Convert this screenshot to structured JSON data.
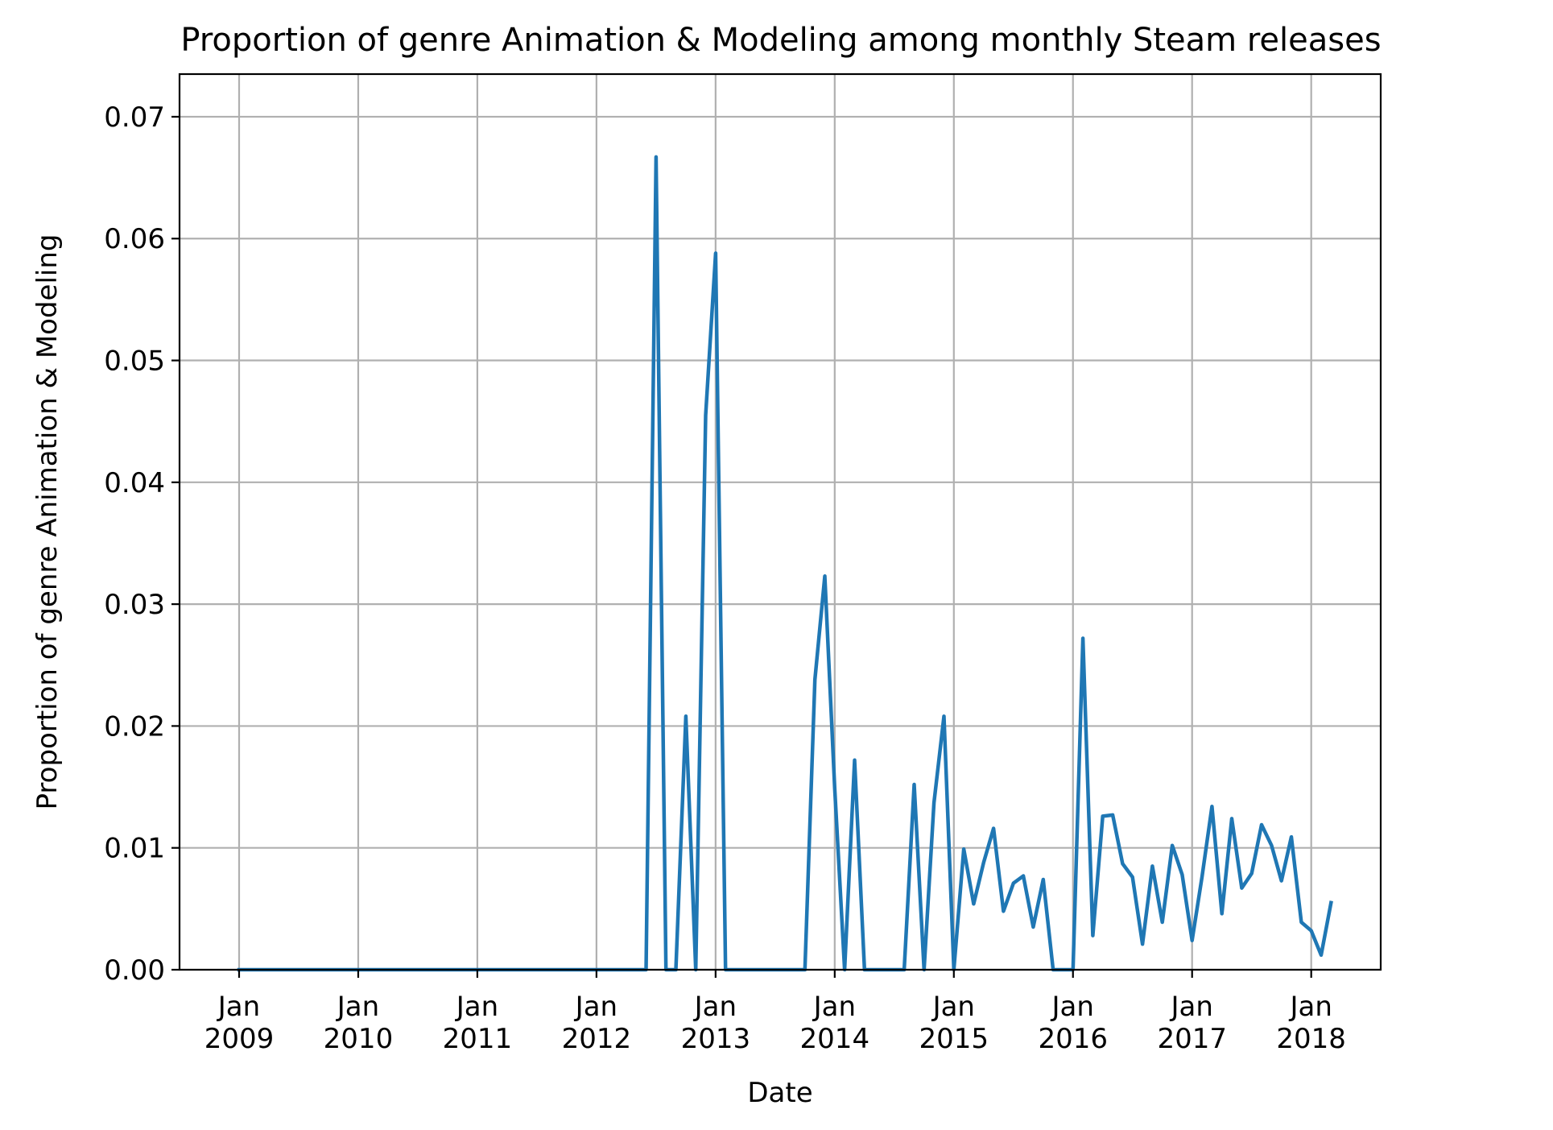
{
  "chart_data": {
    "type": "line",
    "title": "Proportion of genre Animation & Modeling among monthly Steam releases",
    "xlabel": "Date",
    "ylabel": "Proportion of genre Animation & Modeling",
    "xlim": [
      "2008-07",
      "2018-08"
    ],
    "ylim": [
      0,
      0.0735
    ],
    "grid": true,
    "x_ticks": [
      {
        "date": "2009-01",
        "label": [
          "Jan",
          "2009"
        ]
      },
      {
        "date": "2010-01",
        "label": [
          "Jan",
          "2010"
        ]
      },
      {
        "date": "2011-01",
        "label": [
          "Jan",
          "2011"
        ]
      },
      {
        "date": "2012-01",
        "label": [
          "Jan",
          "2012"
        ]
      },
      {
        "date": "2013-01",
        "label": [
          "Jan",
          "2013"
        ]
      },
      {
        "date": "2014-01",
        "label": [
          "Jan",
          "2014"
        ]
      },
      {
        "date": "2015-01",
        "label": [
          "Jan",
          "2015"
        ]
      },
      {
        "date": "2016-01",
        "label": [
          "Jan",
          "2016"
        ]
      },
      {
        "date": "2017-01",
        "label": [
          "Jan",
          "2017"
        ]
      },
      {
        "date": "2018-01",
        "label": [
          "Jan",
          "2018"
        ]
      }
    ],
    "y_ticks": [
      {
        "value": 0.0,
        "label": "0.00"
      },
      {
        "value": 0.01,
        "label": "0.01"
      },
      {
        "value": 0.02,
        "label": "0.02"
      },
      {
        "value": 0.03,
        "label": "0.03"
      },
      {
        "value": 0.04,
        "label": "0.04"
      },
      {
        "value": 0.05,
        "label": "0.05"
      },
      {
        "value": 0.06,
        "label": "0.06"
      },
      {
        "value": 0.07,
        "label": "0.07"
      }
    ],
    "series": [
      {
        "color": "#1f77b4",
        "points": [
          [
            "2009-01",
            0
          ],
          [
            "2012-06",
            0
          ],
          [
            "2012-07",
            0.0667
          ],
          [
            "2012-08",
            0
          ],
          [
            "2012-09",
            0
          ],
          [
            "2012-10",
            0.0208
          ],
          [
            "2012-11",
            0
          ],
          [
            "2012-12",
            0.0455
          ],
          [
            "2013-01",
            0.0588
          ],
          [
            "2013-02",
            0
          ],
          [
            "2013-10",
            0
          ],
          [
            "2013-11",
            0.0238
          ],
          [
            "2013-12",
            0.0323
          ],
          [
            "2014-01",
            0.0149
          ],
          [
            "2014-02",
            0
          ],
          [
            "2014-03",
            0.0172
          ],
          [
            "2014-04",
            0
          ],
          [
            "2014-08",
            0
          ],
          [
            "2014-09",
            0.0152
          ],
          [
            "2014-10",
            0
          ],
          [
            "2014-11",
            0.0137
          ],
          [
            "2014-12",
            0.0208
          ],
          [
            "2015-01",
            0
          ],
          [
            "2015-02",
            0.0099
          ],
          [
            "2015-03",
            0.0054
          ],
          [
            "2015-04",
            0.0088
          ],
          [
            "2015-05",
            0.0116
          ],
          [
            "2015-06",
            0.0048
          ],
          [
            "2015-07",
            0.0071
          ],
          [
            "2015-08",
            0.0077
          ],
          [
            "2015-09",
            0.0035
          ],
          [
            "2015-10",
            0.0074
          ],
          [
            "2015-11",
            0
          ],
          [
            "2015-12",
            0
          ],
          [
            "2016-01",
            0
          ],
          [
            "2016-02",
            0.0272
          ],
          [
            "2016-03",
            0.0028
          ],
          [
            "2016-04",
            0.0126
          ],
          [
            "2016-05",
            0.0127
          ],
          [
            "2016-06",
            0.0087
          ],
          [
            "2016-07",
            0.0076
          ],
          [
            "2016-08",
            0.0021
          ],
          [
            "2016-09",
            0.0085
          ],
          [
            "2016-10",
            0.0039
          ],
          [
            "2016-11",
            0.0102
          ],
          [
            "2016-12",
            0.0078
          ],
          [
            "2017-01",
            0.0024
          ],
          [
            "2017-02",
            0.0076
          ],
          [
            "2017-03",
            0.0134
          ],
          [
            "2017-04",
            0.0046
          ],
          [
            "2017-05",
            0.0124
          ],
          [
            "2017-06",
            0.0067
          ],
          [
            "2017-07",
            0.0079
          ],
          [
            "2017-08",
            0.0119
          ],
          [
            "2017-09",
            0.0102
          ],
          [
            "2017-10",
            0.0073
          ],
          [
            "2017-11",
            0.0109
          ],
          [
            "2017-12",
            0.0039
          ],
          [
            "2018-01",
            0.0032
          ],
          [
            "2018-02",
            0.0012
          ],
          [
            "2018-03",
            0.0055
          ]
        ]
      }
    ]
  }
}
